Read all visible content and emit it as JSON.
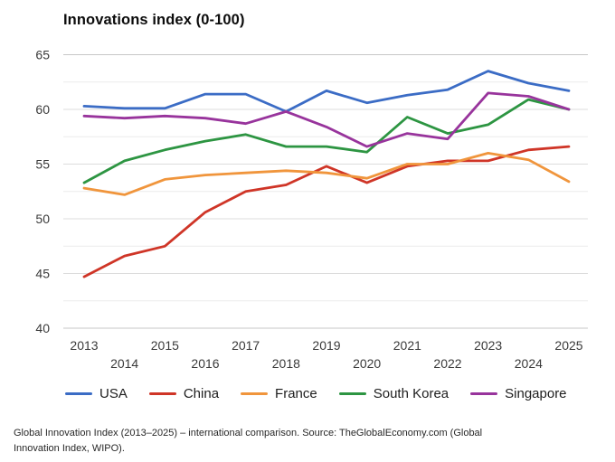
{
  "chart_data": {
    "type": "line",
    "title": "Innovations index (0-100)",
    "xlabel": "",
    "ylabel": "",
    "x": [
      2013,
      2014,
      2015,
      2016,
      2017,
      2018,
      2019,
      2020,
      2021,
      2022,
      2023,
      2024,
      2025
    ],
    "ylim": [
      40,
      65
    ],
    "yticks": [
      40,
      45,
      50,
      55,
      60,
      65
    ],
    "grid": "horizontal gridlines every 2.5, light gray",
    "legend_position": "bottom",
    "series": [
      {
        "name": "USA",
        "color": "#3b6cc5",
        "values": [
          60.3,
          60.1,
          60.1,
          61.4,
          61.4,
          59.8,
          61.7,
          60.6,
          61.3,
          61.8,
          63.5,
          62.4,
          61.7
        ]
      },
      {
        "name": "China",
        "color": "#cf3527",
        "values": [
          44.7,
          46.6,
          47.5,
          50.6,
          52.5,
          53.1,
          54.8,
          53.3,
          54.8,
          55.3,
          55.3,
          56.3,
          56.6
        ]
      },
      {
        "name": "France",
        "color": "#f0953c",
        "values": [
          52.8,
          52.2,
          53.6,
          54.0,
          54.2,
          54.4,
          54.2,
          53.7,
          55.0,
          55.0,
          56.0,
          55.4,
          53.4
        ]
      },
      {
        "name": "South Korea",
        "color": "#2d9542",
        "values": [
          53.3,
          55.3,
          56.3,
          57.1,
          57.7,
          56.6,
          56.6,
          56.1,
          59.3,
          57.8,
          58.6,
          60.9,
          60.0
        ]
      },
      {
        "name": "Singapore",
        "color": "#98349c",
        "values": [
          59.4,
          59.2,
          59.4,
          59.2,
          58.7,
          59.8,
          58.4,
          56.6,
          57.8,
          57.3,
          61.5,
          61.2,
          60.0
        ]
      }
    ]
  },
  "footer": {
    "caption": "Global Innovation Index (2013–2025) – international comparison. Source: TheGlobalEconomy.com (Global Innovation Index, WIPO)."
  }
}
